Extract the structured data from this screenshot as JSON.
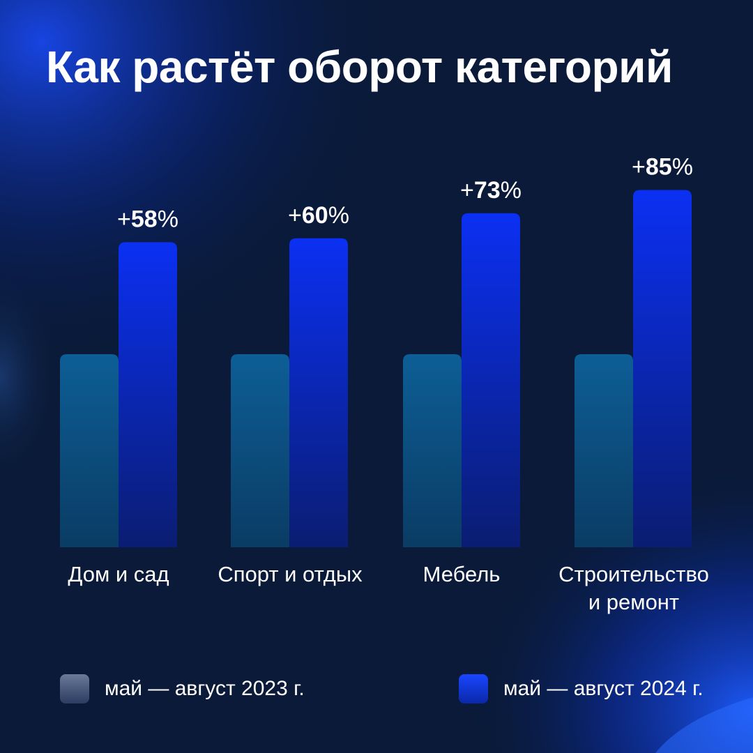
{
  "title": "Как растёт оборот категорий",
  "colors": {
    "series_2023": "#0d5e96",
    "series_2024": "#0b30e0",
    "background": "#0a1a38",
    "text": "#ffffff"
  },
  "legend": [
    {
      "label": "май — август 2023 г."
    },
    {
      "label": "май — август 2024 г."
    }
  ],
  "chart_data": {
    "type": "bar",
    "title": "Как растёт оборот категорий",
    "xlabel": "",
    "ylabel": "",
    "categories": [
      [
        "Дом и сад"
      ],
      [
        "Спорт и отдых"
      ],
      [
        "Мебель"
      ],
      [
        "Строительство",
        "и ремонт"
      ]
    ],
    "series": [
      {
        "name": "май — август 2023 г.",
        "values": [
          100,
          100,
          100,
          100
        ]
      },
      {
        "name": "май — август 2024 г.",
        "values": [
          158,
          160,
          173,
          185
        ]
      }
    ],
    "data_labels": [
      {
        "sign": "+",
        "number": "58",
        "unit": "%"
      },
      {
        "sign": "+",
        "number": "60",
        "unit": "%"
      },
      {
        "sign": "+",
        "number": "73",
        "unit": "%"
      },
      {
        "sign": "+",
        "number": "85",
        "unit": "%"
      }
    ],
    "ylim": [
      0,
      185
    ],
    "grid": false,
    "legend_position": "bottom"
  }
}
